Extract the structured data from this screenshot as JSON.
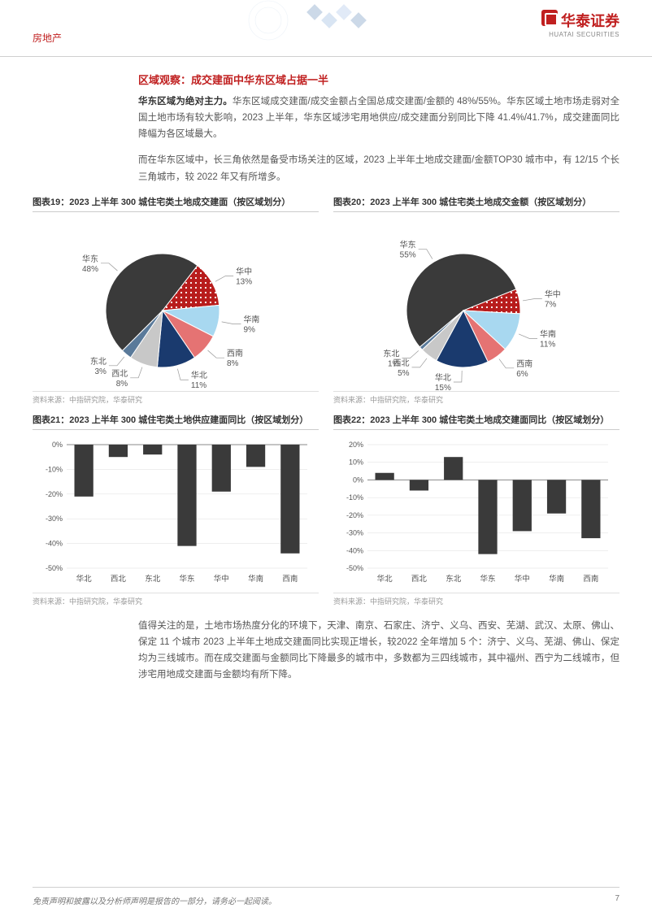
{
  "header": {
    "category": "房地产",
    "logo_cn": "华泰证券",
    "logo_en": "HUATAI SECURITIES"
  },
  "section_title": "区域观察：成交建面中华东区域占据一半",
  "para1_lead": "华东区域为绝对主力。",
  "para1_rest": "华东区域成交建面/成交金额占全国总成交建面/金额的 48%/55%。华东区域土地市场走弱对全国土地市场有较大影响，2023 上半年，华东区域涉宅用地供应/成交建面分别同比下降 41.4%/41.7%，成交建面同比降幅为各区域最大。",
  "para2": "而在华东区域中，长三角依然是备受市场关注的区域，2023 上半年土地成交建面/金额TOP30 城市中，有 12/15 个长三角城市，较 2022 年又有所增多。",
  "para3": "值得关注的是，土地市场热度分化的环境下，天津、南京、石家庄、济宁、义乌、西安、芜湖、武汉、太原、佛山、保定 11 个城市 2023 上半年土地成交建面同比实现正增长，较2022 全年增加 5 个：济宁、义乌、芜湖、佛山、保定均为三线城市。而在成交建面与金额同比下降最多的城市中，多数都为三四线城市，其中福州、西宁为二线城市，但涉宅用地成交建面与金额均有所下降。",
  "charts": {
    "pie1": {
      "title": "图表19：2023 上半年 300 城住宅类土地成交建面（按区域划分）",
      "source": "资料来源：中指研究院，华泰研究",
      "type": "pie",
      "background_color": "#ffffff",
      "slices": [
        {
          "label": "华东",
          "value": 48,
          "color": "#3a3a3a",
          "pattern": "none"
        },
        {
          "label": "华中",
          "value": 13,
          "color": "#b81c1c",
          "pattern": "dots-white"
        },
        {
          "label": "华南",
          "value": 9,
          "color": "#a8d8f0",
          "pattern": "none"
        },
        {
          "label": "西南",
          "value": 8,
          "color": "#e57373",
          "pattern": "none"
        },
        {
          "label": "华北",
          "value": 11,
          "color": "#1a3a6e",
          "pattern": "none"
        },
        {
          "label": "西北",
          "value": 8,
          "color": "#c8c8c8",
          "pattern": "none"
        },
        {
          "label": "东北",
          "value": 3,
          "color": "#5a7a9a",
          "pattern": "none"
        }
      ]
    },
    "pie2": {
      "title": "图表20：2023 上半年 300 城住宅类土地成交金额（按区域划分）",
      "source": "资料来源：中指研究院，华泰研究",
      "type": "pie",
      "background_color": "#ffffff",
      "slices": [
        {
          "label": "华东",
          "value": 55,
          "color": "#3a3a3a",
          "pattern": "none"
        },
        {
          "label": "华中",
          "value": 7,
          "color": "#b81c1c",
          "pattern": "dots-white"
        },
        {
          "label": "华南",
          "value": 11,
          "color": "#a8d8f0",
          "pattern": "none"
        },
        {
          "label": "西南",
          "value": 6,
          "color": "#e57373",
          "pattern": "none"
        },
        {
          "label": "华北",
          "value": 15,
          "color": "#1a3a6e",
          "pattern": "none"
        },
        {
          "label": "西北",
          "value": 5,
          "color": "#c8c8c8",
          "pattern": "none"
        },
        {
          "label": "东北",
          "value": 1,
          "color": "#5a7a9a",
          "pattern": "none"
        }
      ]
    },
    "bar1": {
      "title": "图表21：2023 上半年 300 城住宅类土地供应建面同比（按区域划分）",
      "source": "资料来源：中指研究院，华泰研究",
      "type": "bar",
      "categories": [
        "华北",
        "西北",
        "东北",
        "华东",
        "华中",
        "华南",
        "西南"
      ],
      "values": [
        -21,
        -5,
        -4,
        -41,
        -19,
        -9,
        -44
      ],
      "bar_color": "#3a3a3a",
      "ylim": [
        -50,
        0
      ],
      "ytick_step": 10,
      "y_format": "percent",
      "background_color": "#ffffff",
      "grid_color": "#dddddd",
      "bar_width": 0.55
    },
    "bar2": {
      "title": "图表22：2023 上半年 300 城住宅类土地成交建面同比（按区域划分）",
      "source": "资料来源：中指研究院，华泰研究",
      "type": "bar",
      "categories": [
        "华北",
        "西北",
        "东北",
        "华东",
        "华中",
        "华南",
        "西南"
      ],
      "values": [
        4,
        -6,
        13,
        -42,
        -29,
        -19,
        -33
      ],
      "bar_color": "#3a3a3a",
      "ylim": [
        -50,
        20
      ],
      "ytick_step": 10,
      "y_format": "percent",
      "background_color": "#ffffff",
      "grid_color": "#dddddd",
      "bar_width": 0.55
    }
  },
  "footer": {
    "disclaimer": "免责声明和披露以及分析师声明是报告的一部分，请务必一起阅读。",
    "page": "7"
  }
}
